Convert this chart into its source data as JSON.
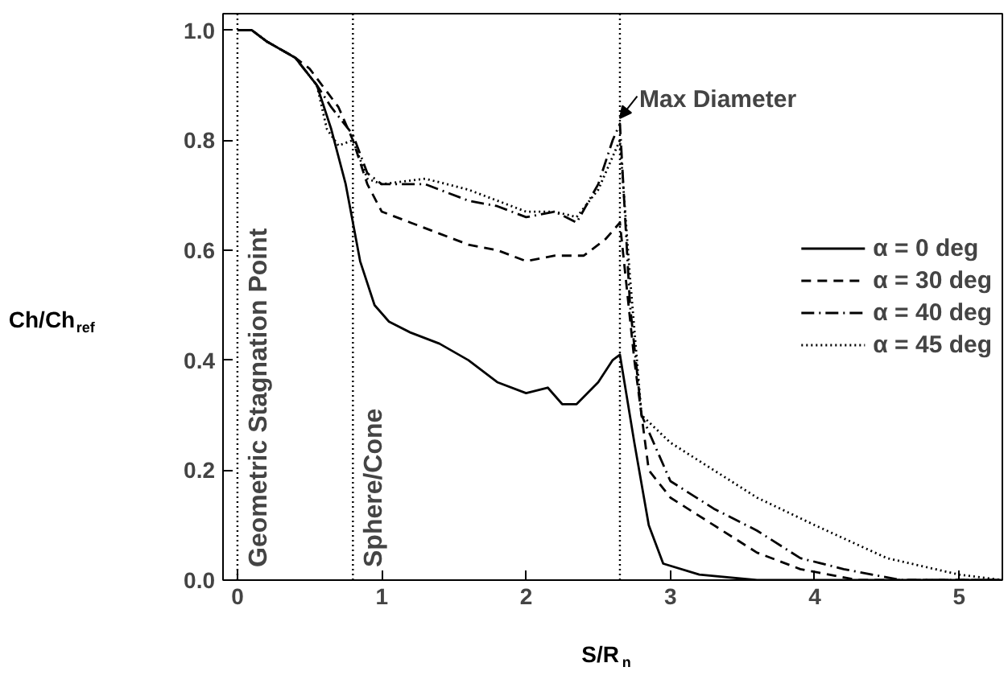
{
  "chart_data": {
    "type": "line",
    "xlabel": "S/R$_{n}$",
    "ylabel": "Ch/Ch$_{ref}$",
    "xlim": [
      -0.1,
      5.3
    ],
    "ylim": [
      0,
      1.03
    ],
    "xticks": [
      0,
      1,
      2,
      3,
      4,
      5
    ],
    "yticks": [
      {
        "value": 0,
        "label": "0.0"
      },
      0.2,
      0.4,
      0.6,
      0.8,
      {
        "value": 1,
        "label": "1.0"
      }
    ],
    "grid": false,
    "legend": "right",
    "marker": "none",
    "series": [
      {
        "name": "α = 0 deg",
        "color": "#000000",
        "line_style": "solid",
        "x": [
          0,
          0.1,
          0.2,
          0.4,
          0.55,
          0.65,
          0.75,
          0.85,
          0.95,
          1.05,
          1.2,
          1.4,
          1.6,
          1.8,
          2.0,
          2.15,
          2.25,
          2.35,
          2.5,
          2.6,
          2.65,
          2.75,
          2.85,
          2.95,
          3.2,
          3.6,
          4.0,
          5.3
        ],
        "values": [
          1.0,
          1.0,
          0.98,
          0.95,
          0.9,
          0.82,
          0.72,
          0.58,
          0.5,
          0.47,
          0.45,
          0.43,
          0.4,
          0.36,
          0.34,
          0.35,
          0.32,
          0.32,
          0.36,
          0.4,
          0.41,
          0.25,
          0.1,
          0.03,
          0.01,
          0.0,
          0.0,
          0.0
        ]
      },
      {
        "name": "α = 30 deg",
        "color": "#000000",
        "line_style": "dashed",
        "x": [
          0,
          0.1,
          0.2,
          0.4,
          0.5,
          0.7,
          0.8,
          0.9,
          1.0,
          1.2,
          1.4,
          1.6,
          1.8,
          2.0,
          2.2,
          2.4,
          2.55,
          2.65,
          2.75,
          2.85,
          3.0,
          3.3,
          3.6,
          3.9,
          4.3,
          5.3
        ],
        "values": [
          1.0,
          1.0,
          0.98,
          0.95,
          0.93,
          0.86,
          0.8,
          0.72,
          0.67,
          0.65,
          0.63,
          0.61,
          0.6,
          0.58,
          0.59,
          0.59,
          0.62,
          0.65,
          0.4,
          0.2,
          0.15,
          0.1,
          0.05,
          0.02,
          0.0,
          0.0
        ]
      },
      {
        "name": "α = 40 deg",
        "color": "#000000",
        "line_style": "dashdot",
        "x": [
          0,
          0.1,
          0.2,
          0.4,
          0.55,
          0.65,
          0.8,
          0.9,
          1.0,
          1.3,
          1.6,
          1.8,
          2.0,
          2.2,
          2.35,
          2.5,
          2.6,
          2.65,
          2.72,
          2.8,
          3.0,
          3.3,
          3.6,
          3.9,
          4.2,
          4.6,
          5.3
        ],
        "values": [
          1.0,
          1.0,
          0.98,
          0.95,
          0.9,
          0.86,
          0.81,
          0.74,
          0.72,
          0.72,
          0.69,
          0.68,
          0.66,
          0.67,
          0.65,
          0.72,
          0.8,
          0.83,
          0.5,
          0.3,
          0.18,
          0.13,
          0.09,
          0.04,
          0.02,
          0.0,
          0.0
        ]
      },
      {
        "name": "α = 45 deg",
        "color": "#000000",
        "line_style": "dotted",
        "x": [
          0,
          0.1,
          0.2,
          0.4,
          0.55,
          0.62,
          0.7,
          0.8,
          0.9,
          1.0,
          1.3,
          1.6,
          1.8,
          2.0,
          2.2,
          2.35,
          2.5,
          2.6,
          2.65,
          2.72,
          2.8,
          3.0,
          3.3,
          3.6,
          4.0,
          4.5,
          5.0,
          5.3
        ],
        "values": [
          1.0,
          1.0,
          0.98,
          0.95,
          0.9,
          0.82,
          0.79,
          0.8,
          0.73,
          0.72,
          0.73,
          0.71,
          0.69,
          0.67,
          0.67,
          0.66,
          0.71,
          0.77,
          0.8,
          0.55,
          0.3,
          0.25,
          0.2,
          0.15,
          0.1,
          0.04,
          0.01,
          0.0
        ]
      }
    ],
    "ref_lines": [
      {
        "axis": "x",
        "value": 0,
        "label": "Geometric Stagnation Point",
        "line_style": "dotted"
      },
      {
        "axis": "x",
        "value": 0.8,
        "label": "Sphere/Cone",
        "line_style": "dotted"
      },
      {
        "axis": "x",
        "value": 2.65,
        "line_style": "dotted"
      }
    ],
    "annotations": [
      {
        "text": "Max Diameter",
        "x": 2.65,
        "y": 0.82
      }
    ]
  }
}
